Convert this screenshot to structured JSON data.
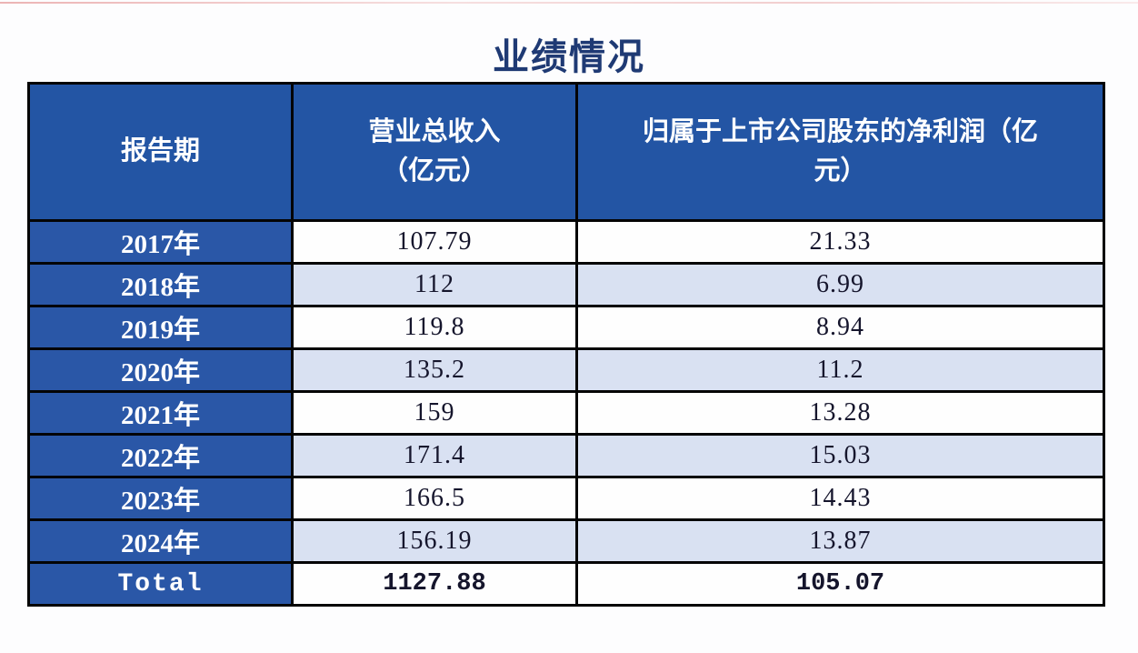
{
  "page": {
    "title": "业绩情况"
  },
  "colors": {
    "header_blue": "#2355a4",
    "year_cell_blue": "#2a57a7",
    "row_alt_blue": "#d9e1f2",
    "row_white": "#fefefe",
    "border_black": "#040404",
    "title_navy": "#1f3a74",
    "value_text_dark": "#15152c",
    "top_line_faint_red": "#e5a0a0"
  },
  "chart_data": {
    "type": "table",
    "title": "业绩情况",
    "columns": [
      "报告期",
      "营业总收入（亿元）",
      "归属于上市公司股东的净利润（亿元）"
    ],
    "header_display": [
      "报告期",
      "营业总收入\n（亿元）",
      "归属于上市公司股东的净利润（亿\n元）"
    ],
    "rows": [
      [
        "2017年",
        "107.79",
        "21.33"
      ],
      [
        "2018年",
        "112",
        "6.99"
      ],
      [
        "2019年",
        "119.8",
        "8.94"
      ],
      [
        "2020年",
        "135.2",
        "11.2"
      ],
      [
        "2021年",
        "159",
        "13.28"
      ],
      [
        "2022年",
        "171.4",
        "15.03"
      ],
      [
        "2023年",
        "166.5",
        "14.43"
      ],
      [
        "2024年",
        "156.19",
        "13.87"
      ],
      [
        "Total",
        "1127.88",
        "105.07"
      ]
    ]
  }
}
